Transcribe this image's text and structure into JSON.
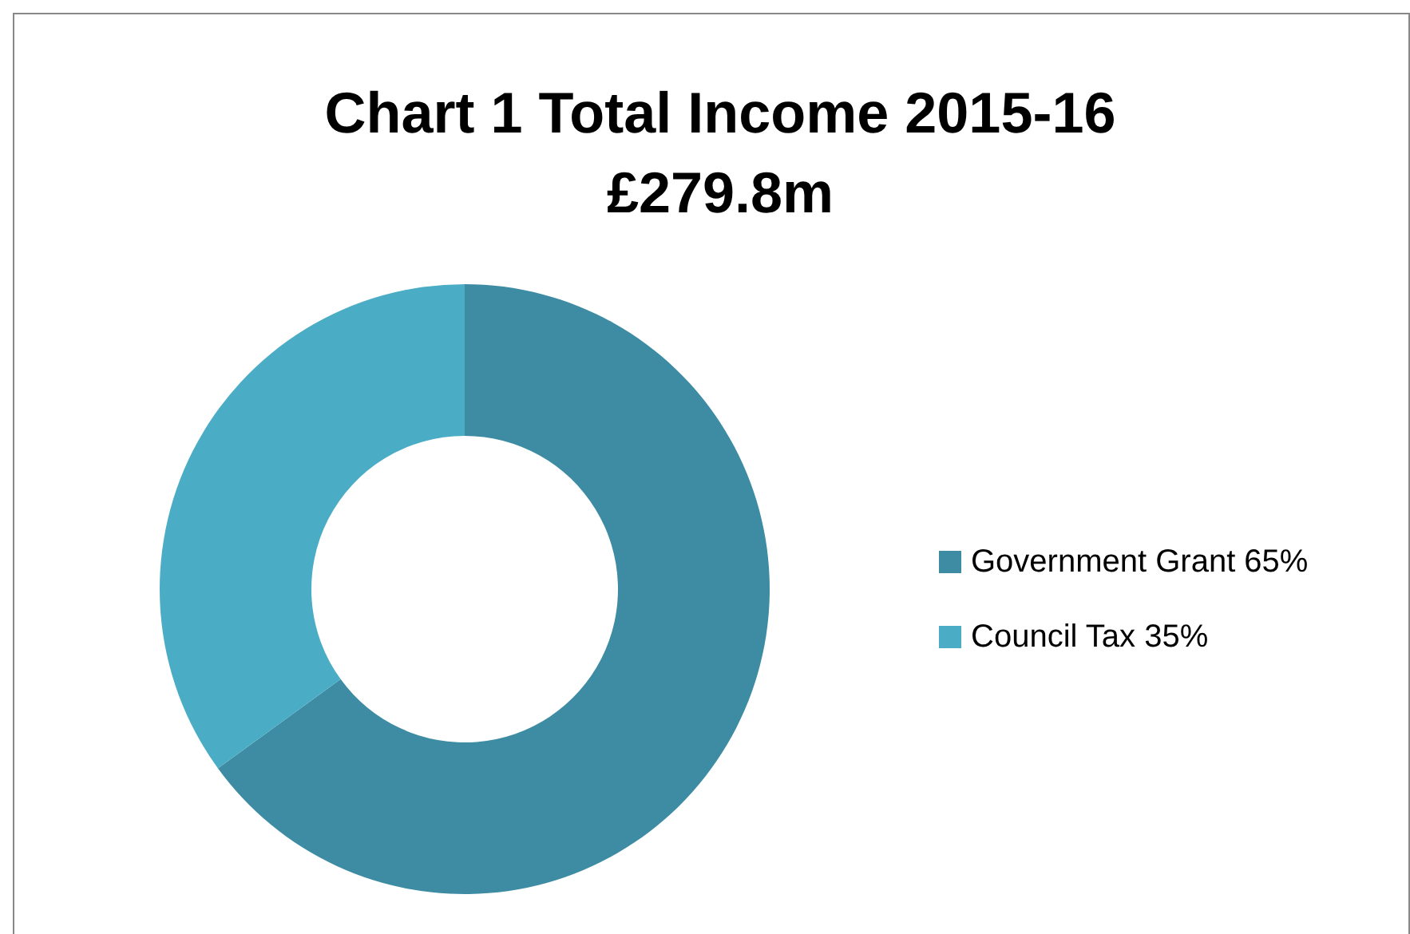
{
  "chart_data": {
    "type": "donut",
    "title": "Chart 1 Total Income 2015-16\n£279.8m",
    "categories": [
      "Government Grant 65%",
      "Council Tax 35%"
    ],
    "values": [
      65,
      35
    ],
    "colors": [
      "#3d8ca3",
      "#4bacc6"
    ],
    "legend": "right"
  }
}
